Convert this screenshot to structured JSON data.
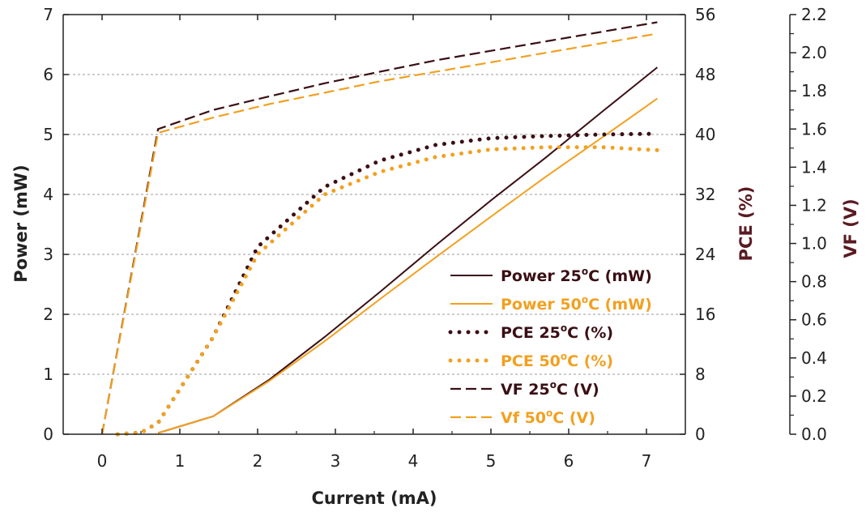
{
  "chart_data": {
    "type": "line",
    "xlabel": "Current (mA)",
    "ylabel_left": "Power (mW)",
    "ylabel_right1": "PCE (%)",
    "ylabel_right2": "VF (V)",
    "xlim": [
      -0.5,
      7.5
    ],
    "ylim_left": [
      0,
      7
    ],
    "ylim_right1": [
      0,
      56
    ],
    "ylim_right2": [
      0,
      2.2
    ],
    "x_ticks": [
      0,
      1,
      2,
      3,
      4,
      5,
      6,
      7
    ],
    "y_left_ticks": [
      0,
      1,
      2,
      3,
      4,
      5,
      6,
      7
    ],
    "y_right1_ticks": [
      0,
      8,
      16,
      24,
      32,
      40,
      48,
      56
    ],
    "y_right2_ticks": [
      "0.0",
      "0.2",
      "0.4",
      "0.6",
      "0.8",
      "1.0",
      "1.2",
      "1.4",
      "1.6",
      "1.8",
      "2.0",
      "2.2"
    ],
    "grid": "horizontal dashed",
    "legend_position": "lower-right",
    "colors": {
      "c25": "#3a0f14",
      "c50": "#f2a020",
      "pce_axis_title": "#5a1a22",
      "vf_axis_title": "#5a1a22"
    },
    "series": [
      {
        "name": "Power 25°C (mW)",
        "name_main": "Power 25",
        "name_unit": "C (mW)",
        "axis": "left",
        "style": "solid",
        "color_key": "c25",
        "x": [
          0.72,
          1.43,
          2.14,
          2.86,
          3.57,
          4.29,
          5.0,
          5.71,
          6.43,
          7.14
        ],
        "y": [
          0.02,
          0.3,
          0.9,
          1.62,
          2.37,
          3.15,
          3.9,
          4.62,
          5.38,
          6.12
        ]
      },
      {
        "name": "Power 50°C (mW)",
        "name_main": "Power 50",
        "name_unit": "C (mW)",
        "axis": "left",
        "style": "solid",
        "color_key": "c50",
        "x": [
          0.72,
          1.43,
          2.14,
          2.86,
          3.57,
          4.29,
          5.0,
          5.71,
          6.43,
          7.14
        ],
        "y": [
          0.02,
          0.3,
          0.88,
          1.55,
          2.25,
          2.95,
          3.63,
          4.3,
          4.95,
          5.6
        ]
      },
      {
        "name": "PCE 25°C (%)",
        "name_main": "PCE 25",
        "name_unit": "C (%)",
        "axis": "right1",
        "style": "dotted",
        "color_key": "c25",
        "x": [
          0.2,
          0.5,
          0.72,
          1.43,
          2.0,
          2.86,
          3.57,
          4.29,
          5.0,
          5.71,
          6.43,
          7.14
        ],
        "y": [
          0,
          0.2,
          1.5,
          13,
          25,
          33,
          36.5,
          38.6,
          39.5,
          39.8,
          40.0,
          40.1
        ]
      },
      {
        "name": "PCE 50°C (%)",
        "name_main": "PCE 50",
        "name_unit": "C (%)",
        "axis": "right1",
        "style": "dotted",
        "color_key": "c50",
        "x": [
          0.2,
          0.5,
          0.72,
          1.43,
          2.0,
          2.86,
          3.57,
          4.29,
          5.0,
          5.71,
          6.43,
          7.14
        ],
        "y": [
          0,
          0.2,
          1.5,
          13,
          24,
          32,
          35,
          37,
          38,
          38.3,
          38.3,
          37.9
        ]
      },
      {
        "name": "VF 25°C (V)",
        "name_main": "VF 25",
        "name_unit": "C (V)",
        "axis": "right2",
        "style": "dashed",
        "color_key": "c25",
        "x": [
          0,
          0.72,
          1.43,
          2.14,
          2.86,
          3.57,
          4.29,
          5.0,
          5.71,
          6.43,
          7.14
        ],
        "y": [
          0,
          1.6,
          1.7,
          1.77,
          1.84,
          1.9,
          1.96,
          2.01,
          2.06,
          2.11,
          2.16
        ]
      },
      {
        "name": "Vf 50°C (V)",
        "name_main": "Vf 50",
        "name_unit": "C (V)",
        "axis": "right2",
        "style": "dashed",
        "color_key": "c50",
        "x": [
          0,
          0.72,
          1.43,
          2.14,
          2.86,
          3.57,
          4.29,
          5.0,
          5.71,
          6.43,
          7.14
        ],
        "y": [
          0,
          1.58,
          1.66,
          1.73,
          1.79,
          1.85,
          1.9,
          1.95,
          2.0,
          2.05,
          2.1
        ]
      }
    ]
  }
}
